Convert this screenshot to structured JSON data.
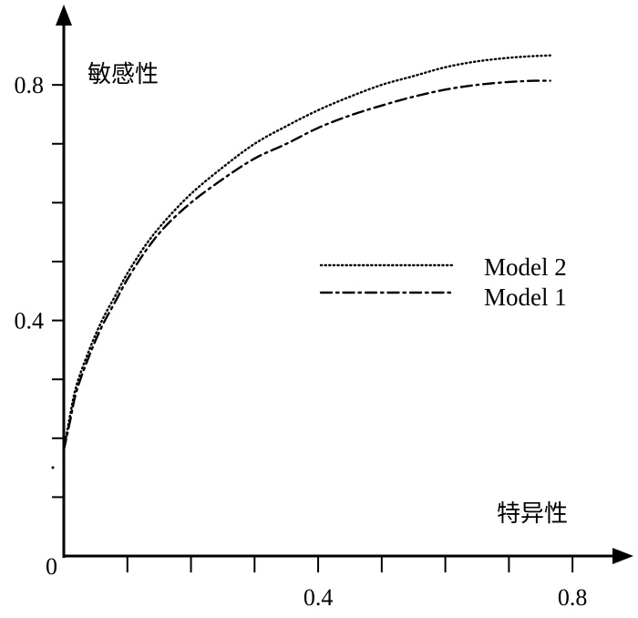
{
  "chart_data": {
    "type": "line",
    "ylabel": "敏感性",
    "xlabel": "特异性",
    "origin_label": "0",
    "xlim": [
      0,
      0.86
    ],
    "ylim": [
      0,
      0.89
    ],
    "x_ticks": [
      0.1,
      0.2,
      0.3,
      0.4,
      0.5,
      0.6,
      0.7,
      0.8
    ],
    "y_ticks": [
      0.1,
      0.2,
      0.3,
      0.4,
      0.5,
      0.6,
      0.7,
      0.8
    ],
    "x_tick_labels": [
      {
        "value": 0.4,
        "label": "0.4"
      },
      {
        "value": 0.8,
        "label": "0.8"
      }
    ],
    "y_tick_labels": [
      {
        "value": 0.4,
        "label": "0.4"
      },
      {
        "value": 0.8,
        "label": "0.8"
      }
    ],
    "legend_position": "right",
    "series": [
      {
        "name": "Model 2",
        "line_style": "dotted",
        "color": "#000000",
        "x": [
          0.0,
          0.01,
          0.02,
          0.04,
          0.06,
          0.08,
          0.1,
          0.13,
          0.16,
          0.2,
          0.25,
          0.3,
          0.35,
          0.4,
          0.45,
          0.5,
          0.55,
          0.6,
          0.65,
          0.7,
          0.74,
          0.765
        ],
        "y": [
          0.18,
          0.24,
          0.29,
          0.35,
          0.4,
          0.44,
          0.48,
          0.53,
          0.57,
          0.615,
          0.66,
          0.7,
          0.73,
          0.757,
          0.78,
          0.8,
          0.815,
          0.83,
          0.84,
          0.846,
          0.849,
          0.85
        ]
      },
      {
        "name": "Model 1",
        "line_style": "dashdot",
        "color": "#000000",
        "x": [
          0.0,
          0.01,
          0.02,
          0.04,
          0.06,
          0.08,
          0.1,
          0.13,
          0.16,
          0.2,
          0.25,
          0.3,
          0.35,
          0.4,
          0.45,
          0.5,
          0.55,
          0.6,
          0.65,
          0.7,
          0.74,
          0.765
        ],
        "y": [
          0.18,
          0.23,
          0.28,
          0.34,
          0.39,
          0.43,
          0.47,
          0.52,
          0.56,
          0.6,
          0.64,
          0.675,
          0.7,
          0.727,
          0.748,
          0.765,
          0.78,
          0.792,
          0.8,
          0.805,
          0.807,
          0.807
        ]
      }
    ]
  }
}
